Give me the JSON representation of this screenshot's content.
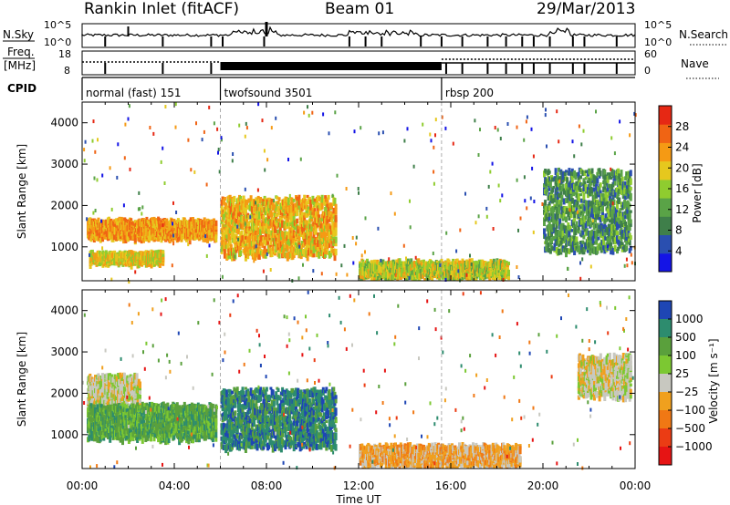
{
  "header": {
    "radar": "Rankin Inlet (fitACF)",
    "beam": "Beam 01",
    "date": "29/Mar/2013"
  },
  "top_panel": {
    "left_label": "N.Sky",
    "right_label": "N.Search",
    "left_ticks": [
      "10^5",
      "10^0"
    ],
    "right_ticks": [
      "10^5",
      "10^0"
    ]
  },
  "freq_panel": {
    "left_label_1": "Freq.",
    "left_label_2": "[MHz]",
    "right_label": "Nave",
    "left_ticks": [
      "18",
      "8"
    ],
    "right_ticks": [
      "60",
      "0"
    ]
  },
  "cpid": {
    "label": "CPID",
    "segments": [
      {
        "name": "normal (fast) 151",
        "start_hour": 0,
        "end_hour": 6
      },
      {
        "name": "twofsound 3501",
        "start_hour": 6,
        "end_hour": 15.6
      },
      {
        "name": "rbsp 200",
        "start_hour": 15.6,
        "end_hour": 24
      }
    ]
  },
  "chart_data": [
    {
      "type": "heatmap",
      "panel": "power",
      "xlabel": "Time UT",
      "ylabel": "Slant Range [km]",
      "x_ticks": [
        "00:00",
        "04:00",
        "08:00",
        "12:00",
        "16:00",
        "20:00",
        "00:00"
      ],
      "x_range_hours": [
        0,
        24
      ],
      "y_ticks": [
        "1000",
        "2000",
        "3000",
        "4000"
      ],
      "y_range": [
        180,
        4500
      ],
      "colorbar": {
        "label": "Power [dB]",
        "ticks": [
          "4",
          "8",
          "12",
          "16",
          "20",
          "24",
          "28"
        ],
        "range": [
          0,
          32
        ],
        "colors": [
          "#1414e6",
          "#2a4fb0",
          "#3f7f4a",
          "#5aa347",
          "#8fcc2f",
          "#e6c81e",
          "#f59a14",
          "#f06414",
          "#e62814"
        ]
      },
      "bands": [
        {
          "t0": 0.2,
          "t1": 5.8,
          "r0": 1300,
          "r1": 1700,
          "level": 24
        },
        {
          "t0": 0.3,
          "t1": 3.5,
          "r0": 700,
          "r1": 900,
          "level": 20
        },
        {
          "t0": 6.0,
          "t1": 11.0,
          "r0": 900,
          "r1": 2300,
          "level": 22
        },
        {
          "t0": 12.0,
          "t1": 18.5,
          "r0": 250,
          "r1": 700,
          "level": 18
        },
        {
          "t0": 20.0,
          "t1": 23.8,
          "r0": 1000,
          "r1": 3000,
          "level": 10
        }
      ]
    },
    {
      "type": "heatmap",
      "panel": "velocity",
      "xlabel": "Time UT",
      "ylabel": "Slant Range [km]",
      "x_ticks": [
        "00:00",
        "04:00",
        "08:00",
        "12:00",
        "16:00",
        "20:00",
        "00:00"
      ],
      "x_range_hours": [
        0,
        24
      ],
      "y_ticks": [
        "1000",
        "2000",
        "3000",
        "4000"
      ],
      "y_range": [
        180,
        4500
      ],
      "colorbar": {
        "label": "Velocity [m s⁻¹]",
        "ticks": [
          "1000",
          "500",
          "100",
          "25",
          "−25",
          "−100",
          "−500",
          "−1000"
        ],
        "colors": [
          "#1e46b4",
          "#2d8c6e",
          "#5aa03c",
          "#7cc832",
          "#c8c8c0",
          "#f0a01e",
          "#f07814",
          "#eb3c14",
          "#e61414"
        ]
      },
      "bands": [
        {
          "t0": 0.2,
          "t1": 2.5,
          "r0": 1700,
          "r1": 2500,
          "level": "25"
        },
        {
          "t0": 0.2,
          "t1": 5.8,
          "r0": 1000,
          "r1": 1800,
          "level": "100"
        },
        {
          "t0": 6.0,
          "t1": 11.0,
          "r0": 800,
          "r1": 2200,
          "level": "500"
        },
        {
          "t0": 12.0,
          "t1": 19.0,
          "r0": 250,
          "r1": 800,
          "level": "-100"
        },
        {
          "t0": 21.5,
          "t1": 23.8,
          "r0": 2000,
          "r1": 3000,
          "level": "25"
        }
      ]
    }
  ],
  "footer": {
    "xlabel": "Time UT"
  }
}
